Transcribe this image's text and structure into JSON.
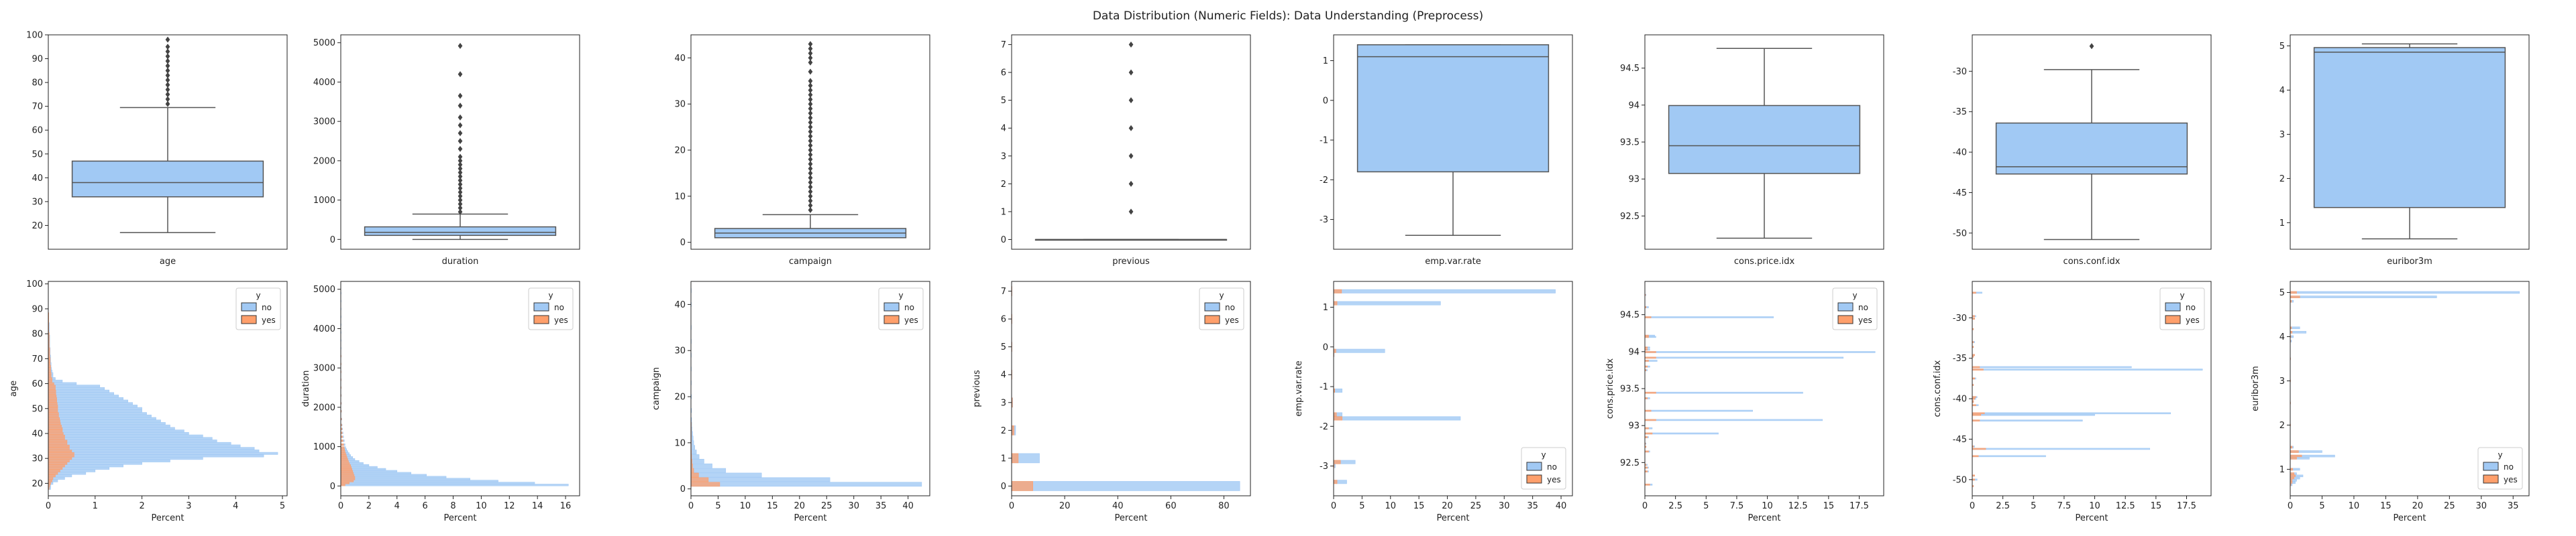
{
  "title": "Data Distribution (Numeric Fields): Data Understanding (Preprocess)",
  "colors": {
    "no": "#a1c9f4",
    "yes": "#ff9f6b",
    "box": "#a1c9f4",
    "line": "#555555"
  },
  "legend": {
    "title": "y",
    "labels": [
      "no",
      "yes"
    ]
  },
  "chart_data": [
    {
      "type": "box",
      "field": "age",
      "xlabel": "age",
      "ylim": [
        10,
        100
      ],
      "yticks": [
        20,
        30,
        40,
        50,
        60,
        70,
        80,
        90,
        100
      ],
      "whisker_low": 17,
      "q1": 32,
      "median": 38,
      "q3": 47,
      "whisker_high": 69.5,
      "outliers": [
        71,
        73,
        75,
        77,
        79,
        81,
        83,
        85,
        87,
        89,
        91,
        93,
        95,
        98
      ]
    },
    {
      "type": "box",
      "field": "duration",
      "xlabel": "duration",
      "ylim": [
        -250,
        5200
      ],
      "yticks": [
        0,
        1000,
        2000,
        3000,
        4000,
        5000
      ],
      "whisker_low": 0,
      "q1": 102,
      "median": 180,
      "q3": 319,
      "whisker_high": 644,
      "outliers": [
        700,
        800,
        900,
        1000,
        1100,
        1200,
        1300,
        1400,
        1500,
        1600,
        1700,
        1800,
        1900,
        2000,
        2100,
        2300,
        2500,
        2700,
        2900,
        3100,
        3400,
        3650,
        4200,
        4920
      ]
    },
    {
      "type": "box",
      "field": "campaign",
      "xlabel": "campaign",
      "ylim": [
        -1.5,
        45
      ],
      "yticks": [
        0,
        10,
        20,
        30,
        40
      ],
      "whisker_low": 1,
      "q1": 1,
      "median": 2,
      "q3": 3,
      "whisker_high": 6,
      "outliers": [
        7,
        8,
        9,
        10,
        11,
        12,
        13,
        14,
        15,
        16,
        17,
        18,
        19,
        20,
        21,
        22,
        23,
        24,
        25,
        26,
        27,
        28,
        29,
        30,
        31,
        32,
        33,
        34,
        35,
        37,
        39,
        40,
        41,
        42,
        43
      ]
    },
    {
      "type": "box",
      "field": "previous",
      "xlabel": "previous",
      "ylim": [
        -0.35,
        7.35
      ],
      "yticks": [
        0,
        1,
        2,
        3,
        4,
        5,
        6,
        7
      ],
      "whisker_low": 0,
      "q1": 0,
      "median": 0,
      "q3": 0,
      "whisker_high": 0,
      "outliers": [
        1,
        2,
        3,
        4,
        5,
        6,
        7
      ]
    },
    {
      "type": "box",
      "field": "emp.var.rate",
      "xlabel": "emp.var.rate",
      "ylim": [
        -3.75,
        1.65
      ],
      "yticks": [
        -3,
        -2,
        -1,
        0,
        1
      ],
      "whisker_low": -3.4,
      "q1": -1.8,
      "median": 1.1,
      "q3": 1.4,
      "whisker_high": 1.4,
      "outliers": []
    },
    {
      "type": "box",
      "field": "cons.price.idx",
      "xlabel": "cons.price.idx",
      "ylim": [
        92.05,
        94.95
      ],
      "yticks": [
        92.5,
        93.0,
        93.5,
        94.0,
        94.5
      ],
      "whisker_low": 92.2,
      "q1": 93.075,
      "median": 93.45,
      "q3": 93.994,
      "whisker_high": 94.767,
      "outliers": []
    },
    {
      "type": "box",
      "field": "cons.conf.idx",
      "xlabel": "cons.conf.idx",
      "ylim": [
        -52,
        -25.5
      ],
      "yticks": [
        -50,
        -45,
        -40,
        -35,
        -30
      ],
      "whisker_low": -50.8,
      "q1": -42.7,
      "median": -41.8,
      "q3": -36.4,
      "whisker_high": -29.8,
      "outliers": [
        -26.9
      ]
    },
    {
      "type": "box",
      "field": "euribor3m",
      "xlabel": "euribor3m",
      "ylim": [
        0.4,
        5.25
      ],
      "yticks": [
        1,
        2,
        3,
        4,
        5
      ],
      "whisker_low": 0.634,
      "q1": 1.344,
      "median": 4.857,
      "q3": 4.961,
      "whisker_high": 5.045,
      "outliers": []
    },
    {
      "type": "histogram",
      "field": "age",
      "ylabel": "age",
      "xlabel": "Percent",
      "ylim": [
        15,
        101
      ],
      "xlim": [
        0,
        5.1
      ],
      "xticks": [
        0,
        1,
        2,
        3,
        4,
        5
      ],
      "yticks": [
        20,
        30,
        40,
        50,
        60,
        70,
        80,
        90,
        100
      ],
      "legend_position": "top-right",
      "bins": [
        18,
        19,
        20,
        21,
        22,
        23,
        24,
        25,
        26,
        27,
        28,
        29,
        30,
        31,
        32,
        33,
        34,
        35,
        36,
        37,
        38,
        39,
        40,
        41,
        42,
        43,
        44,
        45,
        46,
        47,
        48,
        49,
        50,
        51,
        52,
        53,
        54,
        55,
        56,
        57,
        58,
        59,
        60,
        61,
        62,
        63,
        64,
        65,
        66,
        67,
        68,
        69,
        70,
        71,
        72,
        73,
        74,
        75,
        76,
        77,
        78,
        79,
        80,
        81,
        82,
        83,
        84,
        85,
        86,
        87,
        88
      ],
      "no": [
        0.05,
        0.05,
        0.1,
        0.2,
        0.35,
        0.5,
        0.8,
        1.0,
        1.3,
        1.6,
        2.0,
        2.6,
        3.3,
        4.6,
        4.9,
        4.5,
        4.4,
        4.1,
        3.9,
        3.6,
        3.5,
        3.3,
        3.0,
        2.9,
        2.7,
        2.6,
        2.5,
        2.4,
        2.3,
        2.2,
        2.1,
        2.0,
        2.0,
        1.9,
        1.8,
        1.7,
        1.6,
        1.5,
        1.4,
        1.3,
        1.2,
        1.1,
        0.6,
        0.3,
        0.15,
        0.1,
        0.1,
        0.08,
        0.07,
        0.06,
        0.06,
        0.05,
        0.05,
        0.05,
        0.04,
        0.04,
        0.04,
        0.03,
        0.03,
        0.03,
        0.03,
        0.03,
        0.02,
        0.02,
        0.02,
        0.02,
        0.02,
        0.01,
        0.01,
        0.01,
        0.01
      ],
      "yes": [
        0.02,
        0.03,
        0.05,
        0.08,
        0.1,
        0.15,
        0.2,
        0.25,
        0.3,
        0.35,
        0.4,
        0.45,
        0.5,
        0.55,
        0.55,
        0.5,
        0.45,
        0.45,
        0.4,
        0.4,
        0.35,
        0.35,
        0.32,
        0.3,
        0.3,
        0.28,
        0.26,
        0.25,
        0.24,
        0.22,
        0.22,
        0.2,
        0.2,
        0.2,
        0.19,
        0.18,
        0.18,
        0.17,
        0.16,
        0.16,
        0.15,
        0.15,
        0.12,
        0.08,
        0.08,
        0.06,
        0.06,
        0.05,
        0.05,
        0.05,
        0.04,
        0.04,
        0.04,
        0.03,
        0.03,
        0.03,
        0.03,
        0.02,
        0.02,
        0.02,
        0.02,
        0.02,
        0.02,
        0.01,
        0.01,
        0.01,
        0.01,
        0.01,
        0.01,
        0.01,
        0.01
      ]
    },
    {
      "type": "histogram",
      "field": "duration",
      "ylabel": "duration",
      "xlabel": "Percent",
      "ylim": [
        -250,
        5200
      ],
      "xlim": [
        0,
        17.0
      ],
      "xticks": [
        0,
        2,
        4,
        6,
        8,
        10,
        12,
        14,
        16
      ],
      "yticks": [
        0,
        1000,
        2000,
        3000,
        4000,
        5000
      ],
      "legend_position": "top-right",
      "bins": [
        25,
        75,
        125,
        175,
        225,
        275,
        325,
        375,
        425,
        475,
        525,
        575,
        625,
        675,
        725,
        775,
        825,
        875,
        925,
        975,
        1050,
        1150,
        1250,
        1350,
        1450,
        1550,
        1700,
        1900,
        2100,
        2300,
        2500,
        2700,
        2900,
        3100,
        3300,
        3500,
        3700,
        3900,
        4100,
        4300,
        4500,
        4700,
        4900
      ],
      "no": [
        16.2,
        13.8,
        11.2,
        9.2,
        7.5,
        6.1,
        5.0,
        4.0,
        3.2,
        2.6,
        2.0,
        1.6,
        1.3,
        1.0,
        0.85,
        0.7,
        0.6,
        0.5,
        0.42,
        0.35,
        0.3,
        0.25,
        0.2,
        0.16,
        0.13,
        0.1,
        0.08,
        0.06,
        0.05,
        0.04,
        0.03,
        0.03,
        0.02,
        0.02,
        0.02,
        0.01,
        0.01,
        0.01,
        0.01,
        0.01,
        0.01,
        0.01,
        0.01
      ],
      "yes": [
        0.3,
        0.6,
        0.9,
        1.0,
        1.0,
        0.95,
        0.9,
        0.85,
        0.8,
        0.75,
        0.7,
        0.62,
        0.55,
        0.5,
        0.45,
        0.4,
        0.35,
        0.3,
        0.27,
        0.24,
        0.2,
        0.16,
        0.12,
        0.1,
        0.08,
        0.06,
        0.05,
        0.04,
        0.03,
        0.02,
        0.02,
        0.01,
        0.01,
        0.01,
        0.01,
        0.0,
        0.0,
        0.0,
        0.0,
        0.0,
        0.0,
        0.0,
        0.0
      ]
    },
    {
      "type": "histogram",
      "field": "campaign",
      "ylabel": "campaign",
      "xlabel": "Percent",
      "ylim": [
        -1.5,
        45
      ],
      "xlim": [
        0,
        44
      ],
      "xticks": [
        0,
        5,
        10,
        15,
        20,
        25,
        30,
        35,
        40
      ],
      "yticks": [
        0,
        10,
        20,
        30,
        40
      ],
      "legend_position": "top-right",
      "bins": [
        1,
        2,
        3,
        4,
        5,
        6,
        7,
        8,
        9,
        10,
        11,
        12,
        13,
        14,
        15,
        17,
        20,
        23,
        26,
        29,
        32,
        35,
        40,
        43
      ],
      "no": [
        42.5,
        25.6,
        13.0,
        6.4,
        3.9,
        2.4,
        1.5,
        1.0,
        0.7,
        0.5,
        0.4,
        0.3,
        0.2,
        0.15,
        0.12,
        0.1,
        0.08,
        0.06,
        0.05,
        0.04,
        0.03,
        0.02,
        0.01,
        0.01
      ],
      "yes": [
        5.3,
        3.2,
        1.4,
        0.5,
        0.3,
        0.2,
        0.12,
        0.08,
        0.05,
        0.03,
        0.02,
        0.01,
        0.01,
        0.01,
        0.0,
        0.0,
        0.0,
        0.0,
        0.0,
        0.0,
        0.0,
        0.0,
        0.0,
        0.0
      ]
    },
    {
      "type": "histogram",
      "field": "previous",
      "ylabel": "previous",
      "xlabel": "Percent",
      "ylim": [
        -0.35,
        7.35
      ],
      "xlim": [
        0,
        90
      ],
      "xticks": [
        0,
        20,
        40,
        60,
        80
      ],
      "yticks": [
        0,
        1,
        2,
        3,
        4,
        5,
        6,
        7
      ],
      "legend_position": "top-right",
      "bins": [
        0,
        1,
        2,
        3,
        4,
        5,
        6,
        7
      ],
      "no": [
        86.0,
        10.5,
        1.5,
        0.4,
        0.1,
        0.04,
        0.02,
        0.01
      ],
      "yes": [
        8.0,
        2.5,
        0.9,
        0.3,
        0.1,
        0.03,
        0.01,
        0.01
      ]
    },
    {
      "type": "histogram",
      "field": "emp.var.rate",
      "ylabel": "emp.var.rate",
      "xlabel": "Percent",
      "ylim": [
        -3.75,
        1.65
      ],
      "xlim": [
        0,
        42
      ],
      "xticks": [
        0,
        5,
        10,
        15,
        20,
        25,
        30,
        35,
        40
      ],
      "yticks": [
        -3,
        -2,
        -1,
        0,
        1
      ],
      "legend_position": "bottom-right",
      "bins": [
        1.4,
        1.1,
        -0.1,
        -0.2,
        -1.1,
        -1.7,
        -1.8,
        -2.9,
        -3.0,
        -3.4
      ],
      "no": [
        39.0,
        18.8,
        9.0,
        0.1,
        1.5,
        1.5,
        22.3,
        3.8,
        0.3,
        2.3
      ],
      "yes": [
        1.4,
        0.6,
        0.4,
        0.02,
        0.2,
        0.5,
        1.5,
        1.2,
        0.1,
        0.6
      ]
    },
    {
      "type": "histogram",
      "field": "cons.price.idx",
      "ylabel": "cons.price.idx",
      "xlabel": "Percent",
      "ylim": [
        92.05,
        94.95
      ],
      "xlim": [
        0,
        19.5
      ],
      "xticks": [
        0.0,
        2.5,
        5.0,
        7.5,
        10.0,
        12.5,
        15.0,
        17.5
      ],
      "yticks": [
        92.5,
        93.0,
        93.5,
        94.0,
        94.5
      ],
      "legend_position": "top-right",
      "bins": [
        94.767,
        94.601,
        94.465,
        94.215,
        94.199,
        94.055,
        94.027,
        93.994,
        93.918,
        93.876,
        93.798,
        93.749,
        93.444,
        93.369,
        93.2,
        93.075,
        92.963,
        92.893,
        92.843,
        92.756,
        92.713,
        92.649,
        92.469,
        92.431,
        92.379,
        92.201
      ],
      "no": [
        0.1,
        0.3,
        10.5,
        0.8,
        0.9,
        0.4,
        0.4,
        18.8,
        16.2,
        1.0,
        0.4,
        0.2,
        12.9,
        0.4,
        8.8,
        14.5,
        0.6,
        6.0,
        0.3,
        0.1,
        0.1,
        0.4,
        0.2,
        0.3,
        0.3,
        0.6
      ],
      "yes": [
        0.05,
        0.1,
        0.5,
        0.3,
        0.3,
        0.2,
        0.2,
        0.9,
        0.9,
        0.3,
        0.2,
        0.1,
        0.9,
        0.2,
        0.5,
        0.9,
        0.3,
        0.6,
        0.2,
        0.05,
        0.1,
        0.3,
        0.1,
        0.2,
        0.2,
        0.4
      ]
    },
    {
      "type": "histogram",
      "field": "cons.conf.idx",
      "ylabel": "cons.conf.idx",
      "xlabel": "Percent",
      "ylim": [
        -52,
        -25.5
      ],
      "xlim": [
        0,
        19.5
      ],
      "xticks": [
        0.0,
        2.5,
        5.0,
        7.5,
        10.0,
        12.5,
        15.0,
        17.5
      ],
      "yticks": [
        -50,
        -45,
        -40,
        -35,
        -30
      ],
      "legend_position": "top-right",
      "bins": [
        -26.9,
        -29.8,
        -30.1,
        -31.4,
        -33.0,
        -33.6,
        -34.6,
        -34.8,
        -36.1,
        -36.4,
        -37.5,
        -38.3,
        -39.8,
        -40.0,
        -40.3,
        -40.4,
        -40.8,
        -41.8,
        -42.0,
        -42.7,
        -45.9,
        -46.2,
        -47.1,
        -49.5,
        -50.0,
        -50.8
      ],
      "no": [
        0.8,
        0.3,
        0.2,
        0.1,
        0.2,
        0.1,
        0.2,
        0.1,
        13.0,
        18.8,
        0.3,
        0.1,
        0.4,
        0.3,
        0.1,
        0.1,
        0.5,
        16.2,
        10.0,
        9.0,
        0.2,
        14.5,
        6.0,
        0.2,
        0.4,
        0.1
      ],
      "yes": [
        0.3,
        0.2,
        0.2,
        0.1,
        0.1,
        0.1,
        0.2,
        0.1,
        0.6,
        0.9,
        0.2,
        0.1,
        0.3,
        0.2,
        0.1,
        0.1,
        0.3,
        1.0,
        0.7,
        0.6,
        0.1,
        1.1,
        0.5,
        0.2,
        0.2,
        0.1
      ]
    },
    {
      "type": "histogram",
      "field": "euribor3m",
      "ylabel": "euribor3m",
      "xlabel": "Percent",
      "ylim": [
        0.4,
        5.25
      ],
      "xlim": [
        0,
        37.5
      ],
      "xticks": [
        0,
        5,
        10,
        15,
        20,
        25,
        30,
        35
      ],
      "yticks": [
        1,
        2,
        3,
        4,
        5
      ],
      "legend_position": "bottom-right",
      "bins": [
        5.0,
        4.9,
        4.8,
        4.2,
        4.1,
        4.0,
        3.9,
        3.5,
        3.0,
        2.5,
        2.0,
        1.5,
        1.4,
        1.3,
        1.25,
        1.0,
        0.9,
        0.85,
        0.8,
        0.75,
        0.7,
        0.65
      ],
      "no": [
        36.0,
        23.0,
        0.5,
        1.5,
        2.5,
        0.5,
        0.2,
        0.05,
        0.05,
        0.05,
        0.05,
        0.5,
        5.0,
        7.0,
        3.0,
        1.5,
        1.0,
        2.0,
        1.5,
        1.0,
        0.8,
        0.3
      ],
      "yes": [
        1.0,
        1.5,
        0.2,
        0.2,
        0.3,
        0.1,
        0.05,
        0.02,
        0.02,
        0.02,
        0.02,
        0.3,
        1.3,
        1.8,
        1.0,
        0.4,
        0.6,
        0.8,
        0.6,
        0.3,
        0.3,
        0.1
      ]
    }
  ]
}
